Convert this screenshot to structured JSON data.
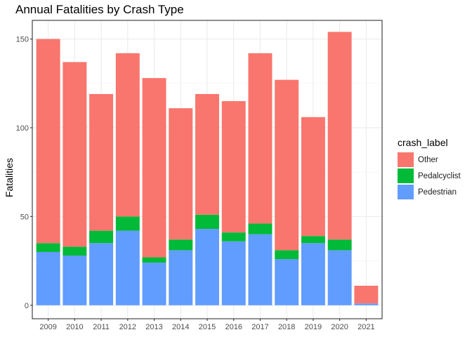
{
  "chart_data": {
    "type": "bar",
    "stacked": true,
    "title": "Annual Fatalities by Crash Type",
    "xlabel": "",
    "ylabel": "Fatalities",
    "ylim": [
      0,
      160
    ],
    "yticks": [
      0,
      50,
      100,
      150
    ],
    "grid": true,
    "legend_position": "right",
    "legend_title": "crash_label",
    "categories": [
      "2009",
      "2010",
      "2011",
      "2012",
      "2013",
      "2014",
      "2015",
      "2016",
      "2017",
      "2018",
      "2019",
      "2020",
      "2021"
    ],
    "series": [
      {
        "name": "Pedestrian",
        "color": "#619CFF",
        "values": [
          30,
          28,
          35,
          42,
          24,
          31,
          43,
          36,
          40,
          26,
          35,
          31,
          1
        ]
      },
      {
        "name": "Pedalcyclist",
        "color": "#00BA38",
        "values": [
          5,
          5,
          7,
          8,
          3,
          6,
          8,
          5,
          6,
          5,
          4,
          6,
          0
        ]
      },
      {
        "name": "Other",
        "color": "#F8766D",
        "values": [
          115,
          104,
          77,
          92,
          101,
          74,
          68,
          74,
          96,
          96,
          67,
          117,
          10
        ]
      }
    ],
    "legend_order": [
      "Other",
      "Pedalcyclist",
      "Pedestrian"
    ]
  }
}
